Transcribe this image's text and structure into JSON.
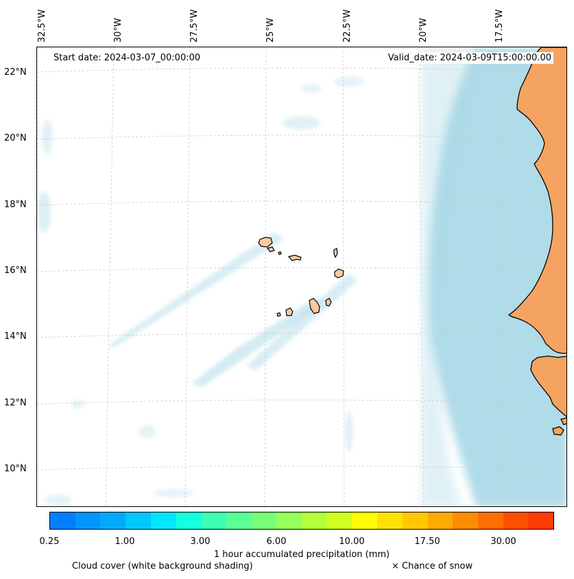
{
  "map": {
    "start_date": "Start date: 2024-03-07_00:00:00",
    "valid_date": "Valid_date: 2024-03-09T15:00:00.00",
    "lon_labels": [
      "32.5°W",
      "30°W",
      "27.5°W",
      "25°W",
      "22.5°W",
      "20°W",
      "17.5°W"
    ],
    "lat_labels": [
      "22°N",
      "20°N",
      "18°N",
      "16°N",
      "14°N",
      "12°N",
      "10°N"
    ],
    "land_color": "#f4a460",
    "cloud_color": "#a8d8e6",
    "grid_color": "#c8c8c8"
  },
  "colorbar": {
    "colors": [
      "#0080ff",
      "#0096ff",
      "#00aaff",
      "#00c8ff",
      "#00e6ff",
      "#14ffe0",
      "#3cffb4",
      "#5aff96",
      "#78ff78",
      "#96ff5a",
      "#b4ff3c",
      "#d2ff1e",
      "#ffff00",
      "#ffe100",
      "#ffc800",
      "#ffaa00",
      "#ff8c00",
      "#ff6e00",
      "#ff5000",
      "#ff3c00"
    ],
    "tick_labels": [
      "0.25",
      "1.00",
      "3.00",
      "6.00",
      "10.00",
      "17.50",
      "30.00"
    ],
    "label": "1 hour accumulated precipitation (mm)"
  },
  "legend": {
    "cloud_cover": "Cloud cover (white background shading)",
    "snow": "× Chance of snow"
  }
}
